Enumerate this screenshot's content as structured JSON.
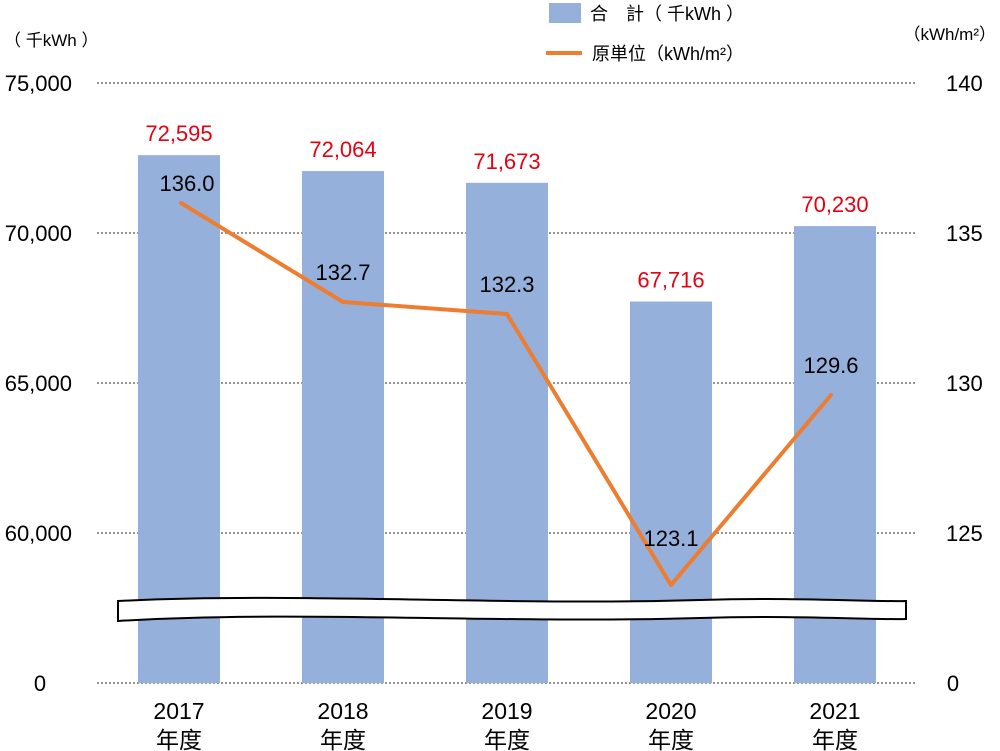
{
  "chart_data": {
    "type": "bar",
    "categories": [
      "2017\n年度",
      "2018\n年度",
      "2019\n年度",
      "2020\n年度",
      "2021\n年度"
    ],
    "category_lines": [
      [
        "2017",
        "年度"
      ],
      [
        "2018",
        "年度"
      ],
      [
        "2019",
        "年度"
      ],
      [
        "2020",
        "年度"
      ],
      [
        "2021",
        "年度"
      ]
    ],
    "series": [
      {
        "name": "合　計（ 千kWh ）",
        "kind": "bar",
        "axis": "left",
        "values": [
          72595,
          72064,
          71673,
          67716,
          70230
        ],
        "labels": [
          "72,595",
          "72,064",
          "71,673",
          "67,716",
          "70,230"
        ],
        "color": "#95b0db"
      },
      {
        "name": "原単位（kWh/m²）",
        "kind": "line",
        "axis": "right",
        "values": [
          136.0,
          132.7,
          132.3,
          123.1,
          129.6
        ],
        "labels": [
          "136.0",
          "132.7",
          "132.3",
          "123.1",
          "129.6"
        ],
        "color": "#ed7d31"
      }
    ],
    "y_left": {
      "unit_label": "（ 千kWh ）",
      "ylim": [
        60000,
        75000
      ],
      "ticks": [
        75000,
        70000,
        65000,
        60000
      ],
      "tick_labels": [
        "75,000",
        "70,000",
        "65,000",
        "60,000"
      ],
      "zero_label": "0",
      "broken_axis": true
    },
    "y_right": {
      "unit_label": "（kWh/m²）",
      "ylim": [
        120,
        140
      ],
      "ticks": [
        140,
        135,
        130,
        125
      ],
      "tick_labels": [
        "140",
        "135",
        "130",
        "125"
      ],
      "zero_label": "0"
    },
    "grid": true,
    "legend_position": "top"
  }
}
